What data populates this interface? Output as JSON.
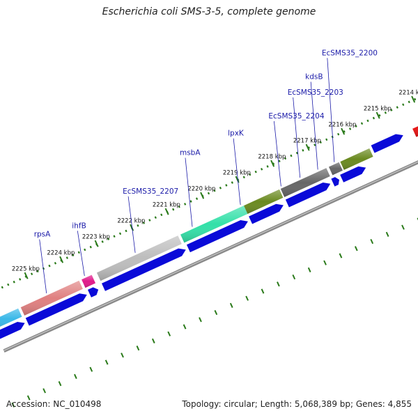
{
  "header": {
    "title": "Escherichia coli SMS-3-5, complete genome"
  },
  "footer": {
    "accession": "Accession: NC_010498",
    "summary": "Topology: circular; Length: 5,068,389 bp; Genes: 4,855"
  },
  "map": {
    "ticks": [
      {
        "label": "2225 kbp"
      },
      {
        "label": "2224 kbp"
      },
      {
        "label": "2223 kbp"
      },
      {
        "label": "2222 kbp"
      },
      {
        "label": "2221 kbp"
      },
      {
        "label": "2220 kbp"
      },
      {
        "label": "2219 kbp"
      },
      {
        "label": "2218 kbp"
      },
      {
        "label": "2217 kbp"
      },
      {
        "label": "2216 kbp"
      },
      {
        "label": "2215 kbp"
      },
      {
        "label": "2214 kbp"
      }
    ],
    "gene_labels": [
      {
        "name": "rpsA"
      },
      {
        "name": "ihfB"
      },
      {
        "name": "EcSMS35_2207"
      },
      {
        "name": "msbA"
      },
      {
        "name": "lpxK"
      },
      {
        "name": "EcSMS35_2204"
      },
      {
        "name": "EcSMS35_2203"
      },
      {
        "name": "kdsB"
      },
      {
        "name": "EcSMS35_2200"
      }
    ],
    "colors": {
      "cds": "#0a0ad8",
      "tick": "#2a7a1a",
      "backbone": "#8a8a8a",
      "feature_light_blue": "#3ab8e8",
      "feature_salmon": "#e08080",
      "feature_pink": "#e01a8a",
      "feature_silver": "#bdbdbd",
      "feature_aqua": "#33e0a8",
      "feature_olive": "#6a8a20",
      "feature_dark_gray": "#666666",
      "feature_red": "#e81414",
      "feature_navy": "#0a0a6a",
      "label_line": "#1a1aa8"
    }
  }
}
